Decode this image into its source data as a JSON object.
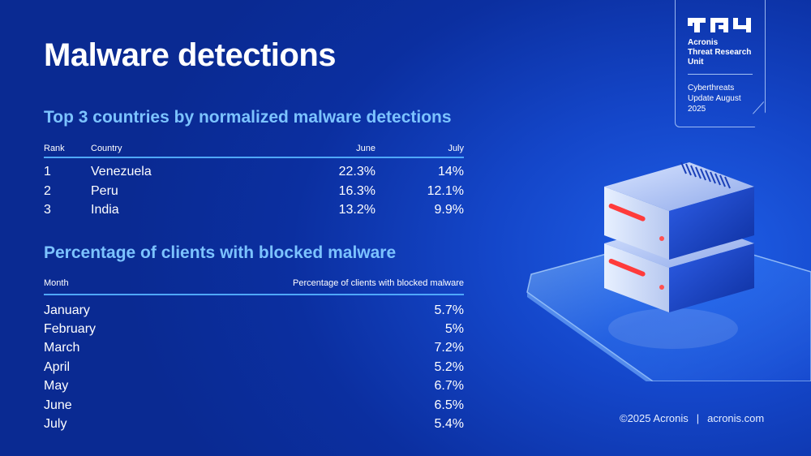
{
  "title": "Malware detections",
  "badge": {
    "org_line1": "Acronis",
    "org_line2": "Threat Research",
    "org_line3": "Unit",
    "update_line1": "Cyberthreats",
    "update_line2": "Update August",
    "update_line3": "2025"
  },
  "countries_table": {
    "heading": "Top 3 countries by normalized malware detections",
    "headers": {
      "rank": "Rank",
      "country": "Country",
      "june": "June",
      "july": "July"
    },
    "rows": [
      {
        "rank": "1",
        "country": "Venezuela",
        "june": "22.3%",
        "july": "14%"
      },
      {
        "rank": "2",
        "country": "Peru",
        "june": "16.3%",
        "july": "12.1%"
      },
      {
        "rank": "3",
        "country": "India",
        "june": "13.2%",
        "july": "9.9%"
      }
    ]
  },
  "clients_table": {
    "heading": "Percentage of clients with blocked malware",
    "headers": {
      "month": "Month",
      "percentage": "Percentage of clients with blocked malware"
    },
    "rows": [
      {
        "month": "January",
        "value": "5.7%"
      },
      {
        "month": "February",
        "value": "5%"
      },
      {
        "month": "March",
        "value": "7.2%"
      },
      {
        "month": "April",
        "value": "5.2%"
      },
      {
        "month": "May",
        "value": "6.7%"
      },
      {
        "month": "June",
        "value": "6.5%"
      },
      {
        "month": "July",
        "value": "5.4%"
      }
    ]
  },
  "footer": {
    "copyright": "©2025 Acronis",
    "separator": "|",
    "site": "acronis.com"
  },
  "colors": {
    "accent": "#7cc3ff",
    "rule": "#4fa8ff",
    "background": "#1446c9",
    "led": "#ff3b3b"
  },
  "icons": {
    "logo": "tru-logo-icon",
    "illustration": "server-stack-icon"
  }
}
